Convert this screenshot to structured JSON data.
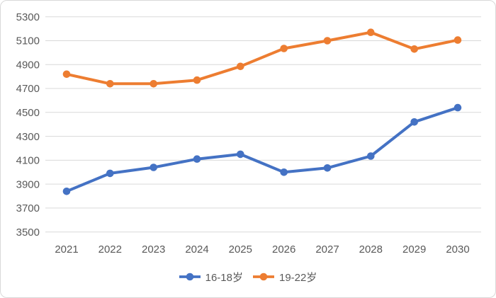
{
  "chart_data": {
    "type": "line",
    "x": [
      "2021",
      "2022",
      "2023",
      "2024",
      "2025",
      "2026",
      "2027",
      "2028",
      "2029",
      "2030"
    ],
    "series": [
      {
        "name": "16-18岁",
        "color": "#4472C4",
        "values": [
          3840,
          3990,
          4040,
          4110,
          4150,
          4000,
          4035,
          4135,
          4420,
          4540
        ]
      },
      {
        "name": "19-22岁",
        "color": "#ED7D31",
        "values": [
          4820,
          4740,
          4740,
          4770,
          4885,
          5035,
          5100,
          5170,
          5030,
          5105
        ]
      }
    ],
    "ylim": [
      3500,
      5300
    ],
    "ytick_step": 200,
    "yticks": [
      "3500",
      "3700",
      "3900",
      "4100",
      "4300",
      "4500",
      "4700",
      "4900",
      "5100",
      "5300"
    ],
    "grid": true,
    "legend_position": "bottom",
    "marker": "circle",
    "styles": {
      "grid_color": "#D9D9D9",
      "tick_label_color": "#595959",
      "border_color": "#D9D9D9",
      "background": "#FFFFFF"
    }
  }
}
